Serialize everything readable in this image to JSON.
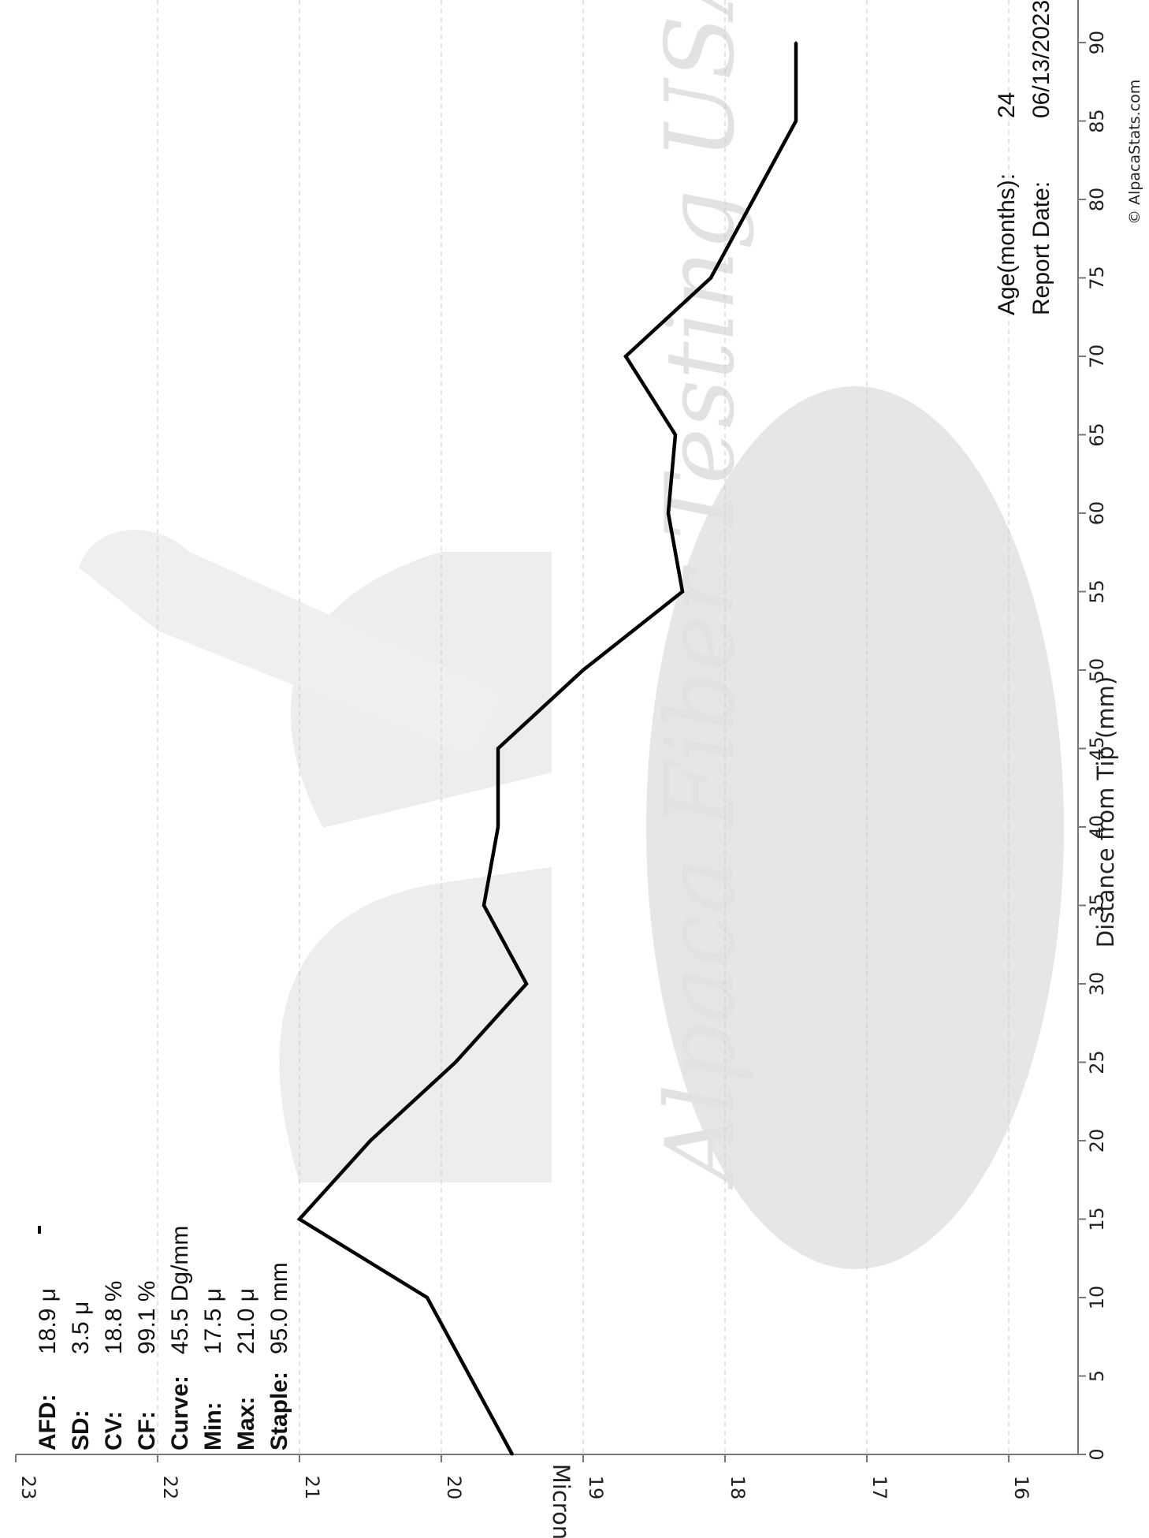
{
  "header": {
    "partial_line": "Age(months):",
    "partial_value": "24",
    "report_date_label": "Report Date:",
    "report_date_value": "06/13/2023"
  },
  "stats": [
    {
      "key": "AFD:",
      "value": "18.9 μ"
    },
    {
      "key": "SD:",
      "value": "3.5 μ"
    },
    {
      "key": "CV:",
      "value": "18.8 %"
    },
    {
      "key": "CF:",
      "value": "99.1 %"
    },
    {
      "key": "Curve:",
      "value": "45.5 Dg/mm"
    },
    {
      "key": "Min:",
      "value": "17.5 μ"
    },
    {
      "key": "Max:",
      "value": "21.0 μ"
    },
    {
      "key": "Staple:",
      "value": "95.0 mm"
    }
  ],
  "copyright": "© AlpacaStats.com",
  "watermark": {
    "text": "Alpaca Fiber Testing USA",
    "color": "#e6e6e6"
  },
  "chart_data": {
    "type": "line",
    "title": "",
    "xlabel": "Distance from Tip (mm)",
    "ylabel": "Micron",
    "x": [
      0,
      5,
      10,
      15,
      20,
      25,
      30,
      35,
      40,
      45,
      50,
      55,
      60,
      65,
      70,
      75,
      80,
      85,
      90
    ],
    "xticks": [
      "0",
      "5",
      "10",
      "15",
      "20",
      "25",
      "30",
      "35",
      "40",
      "45",
      "50",
      "55",
      "60",
      "65",
      "70",
      "75",
      "80",
      "85",
      "90"
    ],
    "yticks": [
      "16",
      "17",
      "18",
      "19",
      "20",
      "21",
      "22",
      "23"
    ],
    "series": [
      {
        "name": "",
        "values": [
          19.5,
          19.8,
          20.1,
          21.0,
          20.5,
          19.9,
          19.4,
          19.7,
          19.6,
          19.6,
          19.0,
          18.3,
          18.4,
          18.35,
          18.7,
          18.1,
          17.8,
          17.5,
          17.5
        ]
      }
    ],
    "xlim": [
      0,
      94
    ],
    "ylim": [
      15.5,
      23
    ],
    "grid": true,
    "line_color": "#000000"
  }
}
